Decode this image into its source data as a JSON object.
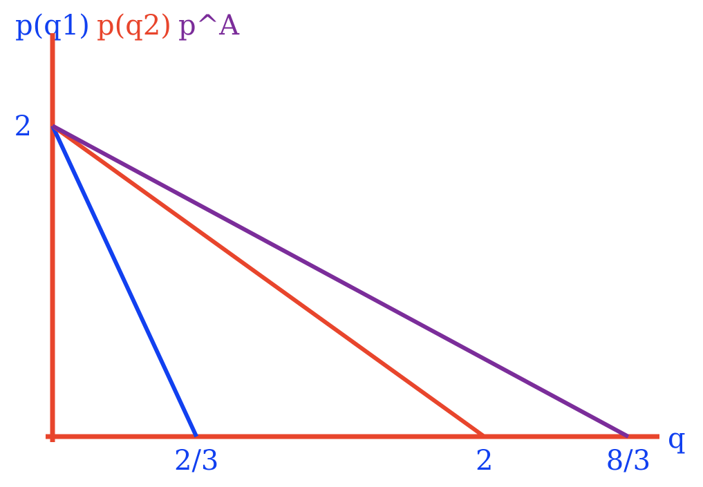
{
  "chart_data": {
    "type": "line",
    "title": "",
    "xlabel": "q",
    "ylabel": "",
    "legend_position": "top-left",
    "grid": false,
    "axis_color": "#E8452C",
    "xlim": [
      0,
      3.0
    ],
    "ylim": [
      0,
      2.25
    ],
    "x_ticks": [
      {
        "value": 0.6667,
        "label": "2/3"
      },
      {
        "value": 2,
        "label": "2"
      },
      {
        "value": 2.6667,
        "label": "8/3"
      }
    ],
    "y_ticks": [
      {
        "value": 2,
        "label": "2"
      }
    ],
    "series": [
      {
        "name": "p(q1)",
        "color": "#1140F0",
        "x": [
          0,
          0.6667
        ],
        "y": [
          2,
          0
        ]
      },
      {
        "name": "p(q2)",
        "color": "#E8452C",
        "x": [
          0,
          2
        ],
        "y": [
          2,
          0
        ]
      },
      {
        "name": "p^A",
        "color": "#7B2D9A",
        "x": [
          0,
          2.6667
        ],
        "y": [
          2,
          0
        ]
      }
    ],
    "label_color": "#1140F0"
  }
}
